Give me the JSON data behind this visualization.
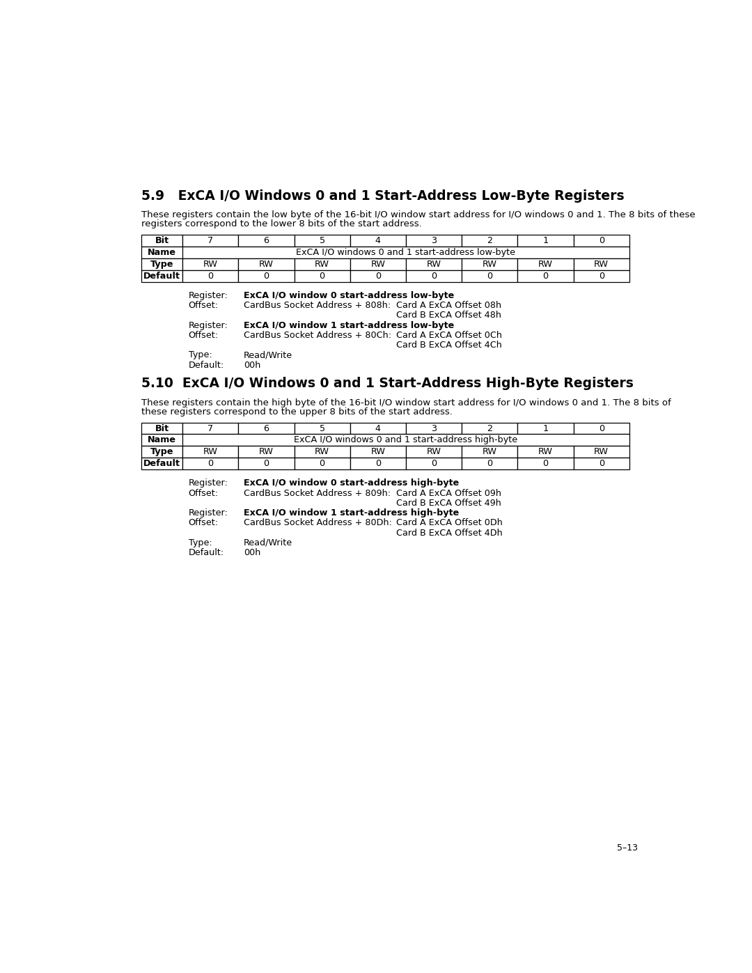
{
  "page_number": "5–13",
  "bg_color": "#ffffff",
  "section1": {
    "heading": "5.9   ExCA I/O Windows 0 and 1 Start-Address Low-Byte Registers",
    "description1": "These registers contain the low byte of the 16-bit I/O window start address for I/O windows 0 and 1. The 8 bits of these",
    "description2": "registers correspond to the lower 8 bits of the start address.",
    "table": {
      "bit_row": [
        "Bit",
        "7",
        "6",
        "5",
        "4",
        "3",
        "2",
        "1",
        "0"
      ],
      "name_row": [
        "Name",
        "ExCA I/O windows 0 and 1 start-address low-byte"
      ],
      "type_row": [
        "Type",
        "RW",
        "RW",
        "RW",
        "RW",
        "RW",
        "RW",
        "RW",
        "RW"
      ],
      "default_row": [
        "Default",
        "0",
        "0",
        "0",
        "0",
        "0",
        "0",
        "0",
        "0"
      ]
    },
    "details": [
      {
        "label": "Register:",
        "bold_text": "ExCA I/O window 0 start-address low-byte",
        "normal_text": "",
        "right_text": ""
      },
      {
        "label": "Offset:",
        "bold_text": "",
        "normal_text": "CardBus Socket Address + 808h:",
        "right_text": "Card A ExCA Offset 08h"
      },
      {
        "label": "",
        "bold_text": "",
        "normal_text": "",
        "right_text": "Card B ExCA Offset 48h"
      },
      {
        "label": "Register:",
        "bold_text": "ExCA I/O window 1 start-address low-byte",
        "normal_text": "",
        "right_text": ""
      },
      {
        "label": "Offset:",
        "bold_text": "",
        "normal_text": "CardBus Socket Address + 80Ch:",
        "right_text": "Card A ExCA Offset 0Ch"
      },
      {
        "label": "",
        "bold_text": "",
        "normal_text": "",
        "right_text": "Card B ExCA Offset 4Ch"
      },
      {
        "label": "Type:",
        "bold_text": "",
        "normal_text": "Read/Write",
        "right_text": ""
      },
      {
        "label": "Default:",
        "bold_text": "",
        "normal_text": "00h",
        "right_text": ""
      }
    ]
  },
  "section2": {
    "heading": "5.10  ExCA I/O Windows 0 and 1 Start-Address High-Byte Registers",
    "description1": "These registers contain the high byte of the 16-bit I/O window start address for I/O windows 0 and 1. The 8 bits of",
    "description2": "these registers correspond to the upper 8 bits of the start address.",
    "table": {
      "bit_row": [
        "Bit",
        "7",
        "6",
        "5",
        "4",
        "3",
        "2",
        "1",
        "0"
      ],
      "name_row": [
        "Name",
        "ExCA I/O windows 0 and 1 start-address high-byte"
      ],
      "type_row": [
        "Type",
        "RW",
        "RW",
        "RW",
        "RW",
        "RW",
        "RW",
        "RW",
        "RW"
      ],
      "default_row": [
        "Default",
        "0",
        "0",
        "0",
        "0",
        "0",
        "0",
        "0",
        "0"
      ]
    },
    "details": [
      {
        "label": "Register:",
        "bold_text": "ExCA I/O window 0 start-address high-byte",
        "normal_text": "",
        "right_text": ""
      },
      {
        "label": "Offset:",
        "bold_text": "",
        "normal_text": "CardBus Socket Address + 809h:",
        "right_text": "Card A ExCA Offset 09h"
      },
      {
        "label": "",
        "bold_text": "",
        "normal_text": "",
        "right_text": "Card B ExCA Offset 49h"
      },
      {
        "label": "Register:",
        "bold_text": "ExCA I/O window 1 start-address high-byte",
        "normal_text": "",
        "right_text": ""
      },
      {
        "label": "Offset:",
        "bold_text": "",
        "normal_text": "CardBus Socket Address + 80Dh:",
        "right_text": "Card A ExCA Offset 0Dh"
      },
      {
        "label": "",
        "bold_text": "",
        "normal_text": "",
        "right_text": "Card B ExCA Offset 4Dh"
      },
      {
        "label": "Type:",
        "bold_text": "",
        "normal_text": "Read/Write",
        "right_text": ""
      },
      {
        "label": "Default:",
        "bold_text": "",
        "normal_text": "00h",
        "right_text": ""
      }
    ]
  }
}
